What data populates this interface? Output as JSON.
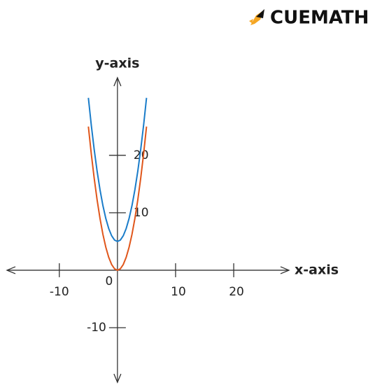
{
  "brand": "CUEMATH",
  "chart_data": {
    "type": "line",
    "x_label": "x-axis",
    "y_label": "y-axis",
    "origin_label": "0",
    "x": [
      -5,
      -4.5,
      -4,
      -3.5,
      -3,
      -2.5,
      -2,
      -1.5,
      -1,
      -0.5,
      0,
      0.5,
      1,
      1.5,
      2,
      2.5,
      3,
      3.5,
      4,
      4.5,
      5
    ],
    "series": [
      {
        "color": "#1a7cc9",
        "values": [
          30,
          25.25,
          21,
          17.25,
          14,
          11.25,
          9,
          7.25,
          6,
          5.25,
          5,
          5.25,
          6,
          7.25,
          9,
          11.25,
          14,
          17.25,
          21,
          25.25,
          30
        ]
      },
      {
        "color": "#e0561b",
        "values": [
          25,
          20.25,
          16,
          12.25,
          9,
          6.25,
          4,
          2.25,
          1,
          0.25,
          0,
          0.25,
          1,
          2.25,
          4,
          6.25,
          9,
          12.25,
          16,
          20.25,
          25
        ]
      }
    ],
    "xlim": [
      -19,
      29.5
    ],
    "ylim": [
      -19.5,
      33.5
    ],
    "xticks": [
      -10,
      10,
      20
    ],
    "yticks": [
      -10,
      10,
      20
    ]
  }
}
